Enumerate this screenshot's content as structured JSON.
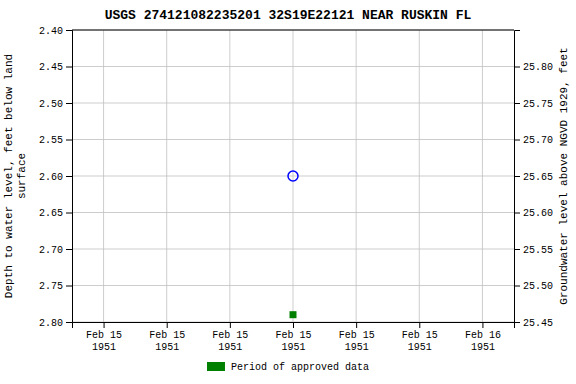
{
  "chart_data": {
    "type": "scatter",
    "title": "USGS 274121082235201 32S19E22121 NEAR RUSKIN FL",
    "ylabel": "Depth to water level, feet below land\nsurface",
    "y2label": "Groundwater level above NGVD 1929, feet",
    "categories": [
      "Feb 15\n1951",
      "Feb 15\n1951",
      "Feb 15\n1951",
      "Feb 15\n1951",
      "Feb 15\n1951",
      "Feb 15\n1951",
      "Feb 16\n1951"
    ],
    "series": [
      {
        "color": "blue",
        "marker": "open-circle",
        "values": [
          null,
          null,
          null,
          2.6,
          null,
          null,
          null
        ]
      },
      {
        "name": "Period of approved data",
        "color": "#008000",
        "marker": "square",
        "values": [
          null,
          null,
          null,
          2.79,
          null,
          null,
          null
        ]
      }
    ],
    "ylim": [
      2.8,
      2.4
    ],
    "yticks": [
      {
        "value": 2.4,
        "label": "2.40"
      },
      2.45,
      {
        "value": 2.5,
        "label": "2.50"
      },
      2.55,
      {
        "value": 2.6,
        "label": "2.60"
      },
      2.65,
      {
        "value": 2.7,
        "label": "2.70"
      },
      2.75,
      {
        "value": 2.8,
        "label": "2.80"
      }
    ],
    "y2lim": [
      25.45,
      25.85
    ],
    "y2ticks": [
      {
        "value": 25.8,
        "label": "25.80"
      },
      25.75,
      {
        "value": 25.7,
        "label": "25.70"
      },
      25.65,
      {
        "value": 25.6,
        "label": "25.60"
      },
      25.55,
      {
        "value": 25.5,
        "label": "25.50"
      },
      25.45
    ],
    "grid": true,
    "legend": "bottom"
  }
}
